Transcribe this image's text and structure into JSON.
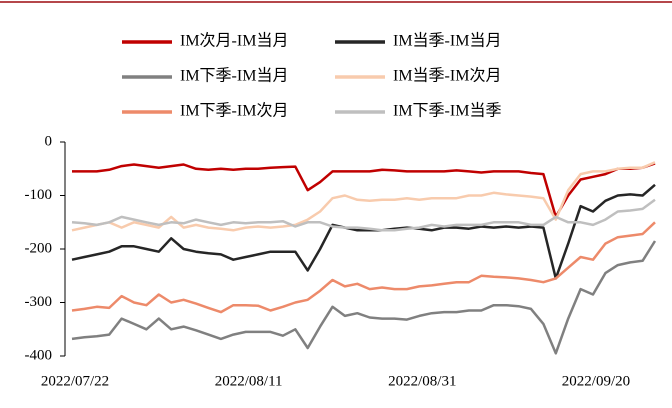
{
  "chart_data": {
    "type": "line",
    "categories": [
      "2022/07/22",
      null,
      null,
      null,
      null,
      null,
      null,
      null,
      null,
      null,
      null,
      null,
      null,
      null,
      "2022/08/11",
      null,
      null,
      null,
      null,
      null,
      null,
      null,
      null,
      null,
      null,
      null,
      null,
      null,
      "2022/08/31",
      null,
      null,
      null,
      null,
      null,
      null,
      null,
      null,
      null,
      null,
      null,
      null,
      null,
      "2022/09/20",
      null,
      null,
      null,
      null,
      null
    ],
    "ylim": [
      -400,
      0
    ],
    "yticks": [
      0,
      -100,
      -200,
      -300,
      -400
    ],
    "series": [
      {
        "name": "IM次月-IM当月",
        "color": "#c00000",
        "values": [
          -55,
          -55,
          -55,
          -52,
          -45,
          -42,
          -45,
          -48,
          -45,
          -42,
          -50,
          -52,
          -50,
          -52,
          -50,
          -50,
          -48,
          -47,
          -46,
          -90,
          -75,
          -55,
          -55,
          -55,
          -55,
          -52,
          -53,
          -55,
          -55,
          -55,
          -55,
          -53,
          -55,
          -57,
          -55,
          -55,
          -55,
          -58,
          -60,
          -140,
          -100,
          -70,
          -65,
          -60,
          -50,
          -50,
          -48,
          -40
        ]
      },
      {
        "name": "IM当季-IM当月",
        "color": "#262626",
        "values": [
          -220,
          -215,
          -210,
          -205,
          -195,
          -195,
          -200,
          -205,
          -180,
          -200,
          -205,
          -208,
          -210,
          -220,
          -215,
          -210,
          -205,
          -205,
          -205,
          -240,
          -200,
          -155,
          -160,
          -165,
          -165,
          -165,
          -162,
          -160,
          -162,
          -165,
          -160,
          -160,
          -162,
          -158,
          -160,
          -158,
          -160,
          -158,
          -160,
          -255,
          -190,
          -120,
          -130,
          -110,
          -100,
          -98,
          -100,
          -80
        ]
      },
      {
        "name": "IM下季-IM当月",
        "color": "#808080",
        "values": [
          -368,
          -365,
          -363,
          -360,
          -330,
          -340,
          -350,
          -330,
          -350,
          -345,
          -352,
          -360,
          -368,
          -360,
          -355,
          -355,
          -355,
          -362,
          -350,
          -385,
          -345,
          -308,
          -325,
          -320,
          -328,
          -330,
          -330,
          -332,
          -325,
          -320,
          -318,
          -318,
          -315,
          -315,
          -305,
          -305,
          -307,
          -312,
          -340,
          -395,
          -330,
          -275,
          -285,
          -245,
          -230,
          -225,
          -222,
          -185
        ]
      },
      {
        "name": "IM当季-IM次月",
        "color": "#f8cbad",
        "values": [
          -165,
          -160,
          -155,
          -150,
          -160,
          -150,
          -155,
          -160,
          -140,
          -160,
          -155,
          -160,
          -162,
          -165,
          -160,
          -158,
          -160,
          -158,
          -155,
          -145,
          -130,
          -105,
          -100,
          -108,
          -110,
          -108,
          -108,
          -105,
          -108,
          -105,
          -105,
          -105,
          -100,
          -100,
          -95,
          -98,
          -100,
          -102,
          -105,
          -145,
          -90,
          -60,
          -55,
          -55,
          -50,
          -48,
          -48,
          -38
        ]
      },
      {
        "name": "IM下季-IM次月",
        "color": "#ed8a6a",
        "values": [
          -315,
          -312,
          -308,
          -310,
          -288,
          -300,
          -305,
          -285,
          -300,
          -295,
          -302,
          -310,
          -318,
          -305,
          -305,
          -306,
          -315,
          -308,
          -300,
          -295,
          -278,
          -258,
          -270,
          -265,
          -275,
          -272,
          -275,
          -275,
          -270,
          -268,
          -265,
          -262,
          -262,
          -250,
          -252,
          -253,
          -255,
          -258,
          -262,
          -255,
          -235,
          -215,
          -220,
          -190,
          -178,
          -175,
          -172,
          -150
        ]
      },
      {
        "name": "IM下季-IM当季",
        "color": "#bfbfbf",
        "values": [
          -150,
          -152,
          -155,
          -150,
          -140,
          -145,
          -150,
          -155,
          -150,
          -152,
          -145,
          -150,
          -155,
          -150,
          -152,
          -150,
          -150,
          -148,
          -158,
          -150,
          -150,
          -158,
          -160,
          -160,
          -162,
          -165,
          -165,
          -162,
          -160,
          -155,
          -158,
          -155,
          -155,
          -155,
          -150,
          -150,
          -150,
          -155,
          -155,
          -140,
          -150,
          -150,
          -155,
          -145,
          -130,
          -128,
          -125,
          -108
        ]
      }
    ]
  }
}
